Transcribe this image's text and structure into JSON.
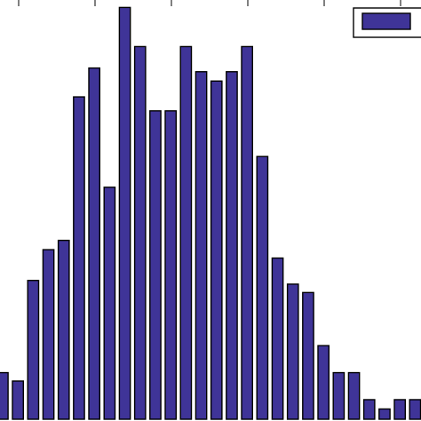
{
  "chart_data": {
    "type": "bar",
    "bar_color": "#3f3498",
    "grid": false,
    "legend_position": "top-right",
    "series": [
      {
        "values": [
          50,
          41,
          149,
          182,
          192,
          346,
          377,
          249,
          442,
          400,
          331,
          331,
          400,
          373,
          363,
          373,
          400,
          282,
          173,
          145,
          136,
          79,
          50,
          50,
          21,
          11,
          21,
          21
        ]
      }
    ],
    "ylim": [
      0,
      450
    ]
  }
}
